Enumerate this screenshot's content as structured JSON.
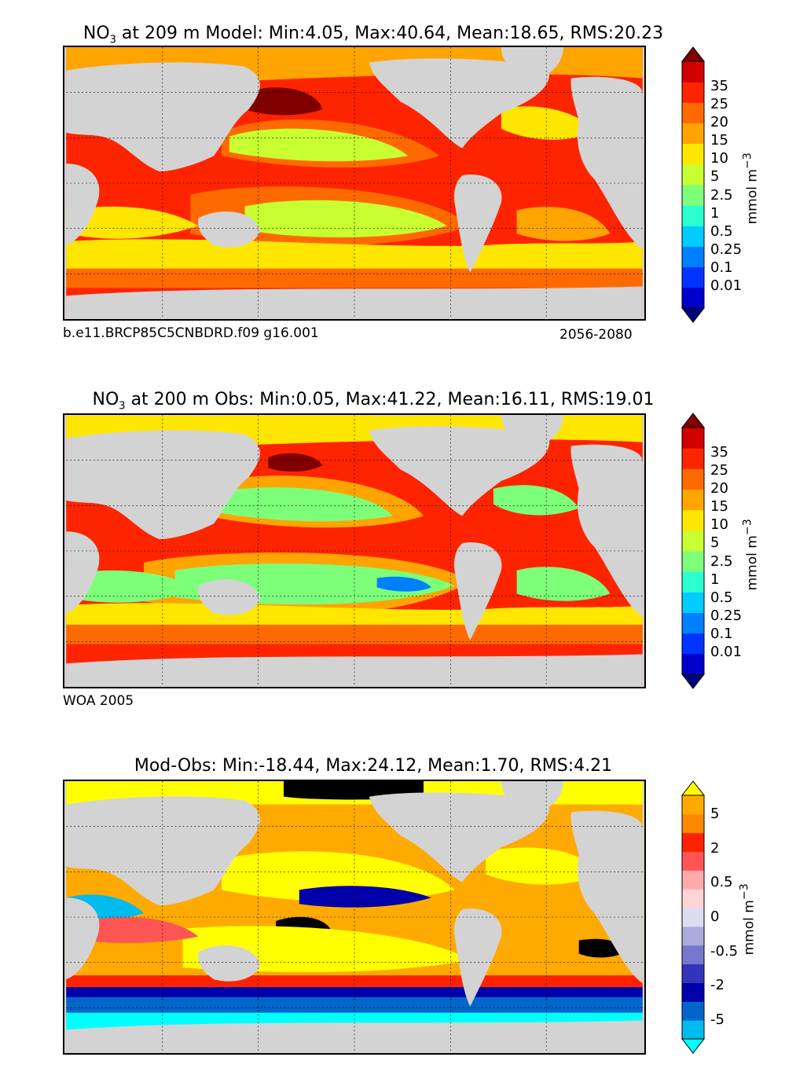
{
  "colors": {
    "land": "#d3d3d3",
    "nitrate_scale": [
      "#00007f",
      "#0000cd",
      "#0033ff",
      "#0080ff",
      "#00ccff",
      "#2affd2",
      "#7dff7a",
      "#c7ff30",
      "#ffe600",
      "#ffa400",
      "#ff6a00",
      "#ff2400",
      "#d20000",
      "#800000"
    ],
    "diff_scale": [
      "#00ffff",
      "#00bbee",
      "#0066cc",
      "#0000aa",
      "#3333bb",
      "#7777cc",
      "#aaaadd",
      "#ddddf0",
      "#ffd4d4",
      "#ffaaaa",
      "#ff5555",
      "#ff2200",
      "#ff8800",
      "#ffaa00",
      "#ffff00"
    ]
  },
  "chart_data": [
    {
      "type": "heatmap",
      "title": "NO",
      "title_sub": "3",
      "title_rest": " at 209 m Model: Min:4.05, Max:40.64, Mean:18.65, RMS:20.23",
      "stats": {
        "min": 4.05,
        "max": 40.64,
        "mean": 18.65,
        "rms": 20.23
      },
      "depth": "209 m",
      "source": "Model",
      "caption_left": "b.e11.BRCP85C5CNBDRD.f09 g16.001",
      "caption_right": "2056-2080",
      "colorbar_ticks": [
        "35",
        "25",
        "20",
        "15",
        "10",
        "5",
        "2.5",
        "1",
        "0.5",
        "0.25",
        "0.1",
        "0.01"
      ],
      "unit": "mmol m",
      "unit_sup": "−3"
    },
    {
      "type": "heatmap",
      "title": "NO",
      "title_sub": "3",
      "title_rest": " at 200 m Obs: Min:0.05, Max:41.22, Mean:16.11, RMS:19.01",
      "stats": {
        "min": 0.05,
        "max": 41.22,
        "mean": 16.11,
        "rms": 19.01
      },
      "depth": "200 m",
      "source": "Obs",
      "caption_left": "WOA 2005",
      "colorbar_ticks": [
        "35",
        "25",
        "20",
        "15",
        "10",
        "5",
        "2.5",
        "1",
        "0.5",
        "0.25",
        "0.1",
        "0.01"
      ],
      "unit": "mmol m",
      "unit_sup": "−3"
    },
    {
      "type": "heatmap",
      "title": "Mod-Obs: Min:-18.44, Max:24.12, Mean:1.70, RMS:4.21",
      "stats": {
        "min": -18.44,
        "max": 24.12,
        "mean": 1.7,
        "rms": 4.21
      },
      "colorbar_ticks": [
        "5",
        "2",
        "0.5",
        "0",
        "-0.5",
        "-2",
        "-5"
      ],
      "unit": "mmol m",
      "unit_sup": "−3"
    }
  ]
}
